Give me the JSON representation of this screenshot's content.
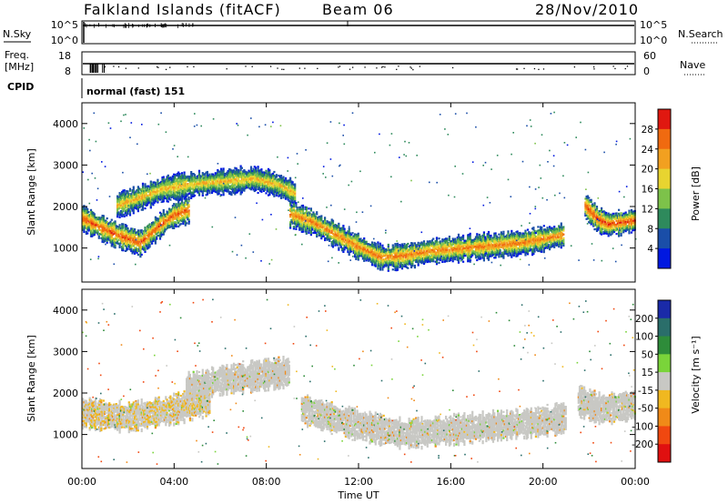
{
  "header": {
    "station": "Falkland Islands (fitACF)",
    "beam": "Beam 06",
    "date": "28/Nov/2010"
  },
  "aux_panels": {
    "nsky_label": "N.Sky",
    "nsky_ticks": [
      "10^5",
      "10^0"
    ],
    "nsearch_label": "N.Search",
    "nsearch_ticks": [
      "10^5",
      "10^0"
    ],
    "freq_label_1": "Freq.",
    "freq_label_2": "[MHz]",
    "freq_ticks": [
      "18",
      "8"
    ],
    "nave_label": "Nave",
    "nave_ticks": [
      "60",
      "0"
    ],
    "cpid_label": "CPID",
    "cpid_value": "normal (fast) 151"
  },
  "axes": {
    "ylabel": "Slant Range [km]",
    "xlabel": "Time UT",
    "y_ticks": [
      "1000",
      "2000",
      "3000",
      "4000"
    ],
    "x_ticks": [
      "00:00",
      "04:00",
      "08:00",
      "12:00",
      "16:00",
      "20:00",
      "00:00"
    ]
  },
  "colorbars": {
    "power": {
      "label": "Power [dB]",
      "ticks": [
        "4",
        "8",
        "12",
        "16",
        "20",
        "24",
        "28"
      ],
      "colors": [
        "#0018e0",
        "#1a4ea8",
        "#2e8a5c",
        "#7dc24a",
        "#e8d430",
        "#f2a020",
        "#f06a10",
        "#e01810"
      ]
    },
    "velocity": {
      "label": "Velocity [m s⁻¹]",
      "ticks": [
        "200",
        "100",
        "50",
        "15",
        "-15",
        "-50",
        "-100",
        "-200"
      ],
      "colors": [
        "#1a2aa8",
        "#2a6e6a",
        "#2e8c3a",
        "#7ad43a",
        "#c8c8c4",
        "#f0b820",
        "#f08a18",
        "#f04810",
        "#e01010"
      ]
    }
  },
  "chart_data": {
    "type": "heatmap",
    "title": "Falkland Islands (fitACF)",
    "xlabel": "Time UT",
    "ylabel": "Slant Range [km]",
    "xlim": [
      0,
      24
    ],
    "ylim": [
      180,
      4500
    ],
    "panels": [
      {
        "quantity": "Power [dB]",
        "scale": [
          0,
          30
        ],
        "echo_bands": [
          {
            "t": [
              0.0,
              0.7,
              1.5,
              2.5,
              3.3,
              3.9,
              4.6
            ],
            "range_km": [
              1700,
              1500,
              1300,
              1100,
              1500,
              1750,
              1900
            ],
            "power_db": 26
          },
          {
            "t": [
              1.5,
              2.5,
              3.5,
              4.5,
              5.5,
              6.5,
              7.5,
              8.5,
              9.2
            ],
            "range_km": [
              2000,
              2200,
              2400,
              2500,
              2550,
              2600,
              2650,
              2500,
              2300
            ],
            "power_db": 20
          },
          {
            "t": [
              9.0,
              10.0,
              11.0,
              12.0,
              13.0,
              14.0,
              15.0,
              16.0,
              17.0,
              18.0,
              19.0,
              20.0,
              20.9
            ],
            "range_km": [
              1800,
              1600,
              1300,
              1000,
              750,
              800,
              900,
              950,
              1000,
              1050,
              1100,
              1200,
              1300
            ],
            "power_db": 24
          },
          {
            "t": [
              21.8,
              22.3,
              22.8,
              23.4,
              24.0
            ],
            "range_km": [
              2000,
              1700,
              1550,
              1600,
              1650
            ],
            "power_db": 27
          }
        ]
      },
      {
        "quantity": "Velocity [m s-1]",
        "scale": [
          -250,
          250
        ],
        "echo_bands": [
          {
            "t": [
              0.0,
              2.0,
              4.0,
              5.5
            ],
            "range_km": [
              1500,
              1400,
              1600,
              1800
            ],
            "velocity": -10
          },
          {
            "t": [
              4.5,
              6.0,
              7.5,
              9.0
            ],
            "range_km": [
              2100,
              2300,
              2400,
              2500
            ],
            "velocity": 0
          },
          {
            "t": [
              9.5,
              12.0,
              14.0,
              16.0,
              18.0,
              20.0,
              21.0
            ],
            "range_km": [
              1600,
              1200,
              1000,
              1100,
              1200,
              1300,
              1400
            ],
            "velocity": -5
          },
          {
            "t": [
              21.5,
              22.5,
              24.0
            ],
            "range_km": [
              1800,
              1600,
              1700
            ],
            "velocity": 0
          }
        ]
      }
    ]
  }
}
